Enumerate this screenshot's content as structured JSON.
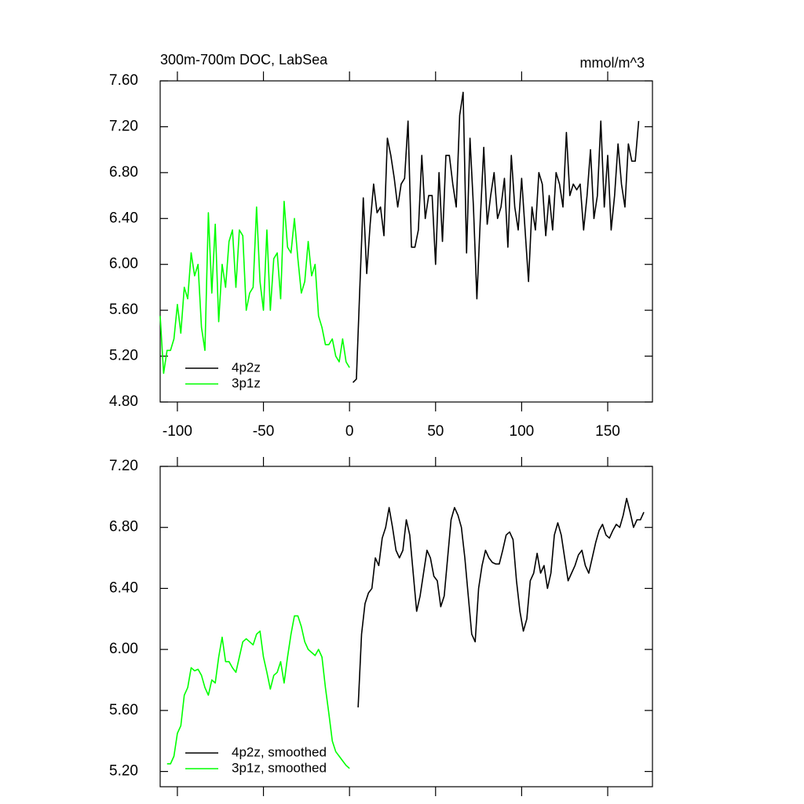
{
  "chart_data": [
    {
      "type": "line",
      "title": "300m-700m DOC, LabSea",
      "units_label": "mmol/m^3",
      "xlim": [
        -110,
        176
      ],
      "xticks": [
        -100,
        -50,
        0,
        50,
        100,
        150
      ],
      "ylim": [
        4.8,
        7.6
      ],
      "yticks": [
        {
          "value": 4.8,
          "label": "4.80"
        },
        {
          "value": 5.2,
          "label": "5.20"
        },
        {
          "value": 5.6,
          "label": "5.60"
        },
        {
          "value": 6.0,
          "label": "6.00"
        },
        {
          "value": 6.4,
          "label": "6.40"
        },
        {
          "value": 6.8,
          "label": "6.80"
        },
        {
          "value": 7.2,
          "label": "7.20"
        },
        {
          "value": 7.6,
          "label": "7.60"
        }
      ],
      "legend": "lower left",
      "series": [
        {
          "name": "4p2z",
          "color": "#000000",
          "x": [
            2,
            4,
            6,
            8,
            10,
            12,
            14,
            16,
            18,
            20,
            22,
            24,
            26,
            28,
            30,
            32,
            34,
            36,
            38,
            40,
            42,
            44,
            46,
            48,
            50,
            52,
            54,
            56,
            58,
            60,
            62,
            64,
            66,
            68,
            70,
            72,
            74,
            76,
            78,
            80,
            82,
            84,
            86,
            88,
            90,
            92,
            94,
            96,
            98,
            100,
            102,
            104,
            106,
            108,
            110,
            112,
            114,
            116,
            118,
            120,
            122,
            124,
            126,
            128,
            130,
            132,
            134,
            136,
            138,
            140,
            142,
            144,
            146,
            148,
            150,
            152,
            154,
            156,
            158,
            160,
            162,
            164,
            166,
            168
          ],
          "values": [
            4.97,
            5.0,
            5.8,
            6.58,
            5.92,
            6.35,
            6.7,
            6.45,
            6.5,
            6.25,
            7.1,
            6.95,
            6.75,
            6.5,
            6.7,
            6.75,
            7.25,
            6.15,
            6.15,
            6.3,
            6.95,
            6.4,
            6.6,
            6.6,
            6.0,
            6.8,
            6.2,
            6.95,
            6.95,
            6.7,
            6.5,
            7.3,
            7.5,
            6.1,
            7.1,
            6.5,
            5.7,
            6.4,
            7.02,
            6.35,
            6.6,
            6.8,
            6.4,
            6.5,
            6.75,
            6.15,
            6.95,
            6.5,
            6.3,
            6.75,
            6.3,
            5.85,
            6.5,
            6.3,
            6.8,
            6.7,
            6.25,
            6.6,
            6.3,
            6.8,
            6.7,
            6.5,
            7.15,
            6.6,
            6.7,
            6.65,
            6.7,
            6.3,
            6.6,
            7.0,
            6.4,
            6.6,
            7.25,
            6.5,
            6.95,
            6.3,
            6.6,
            7.05,
            6.7,
            6.5,
            7.05,
            6.9,
            6.9,
            7.25
          ]
        },
        {
          "name": "3p1z",
          "color": "#00ff00",
          "x": [
            -110,
            -108,
            -106,
            -104,
            -102,
            -100,
            -98,
            -96,
            -94,
            -92,
            -90,
            -88,
            -86,
            -84,
            -82,
            -80,
            -78,
            -76,
            -74,
            -72,
            -70,
            -68,
            -66,
            -64,
            -62,
            -60,
            -58,
            -56,
            -54,
            -52,
            -50,
            -48,
            -46,
            -44,
            -42,
            -40,
            -38,
            -36,
            -34,
            -32,
            -30,
            -28,
            -26,
            -24,
            -22,
            -20,
            -18,
            -16,
            -14,
            -12,
            -10,
            -8,
            -6,
            -4,
            -2,
            0
          ],
          "values": [
            5.55,
            5.05,
            5.25,
            5.25,
            5.35,
            5.65,
            5.4,
            5.8,
            5.7,
            6.1,
            5.9,
            6.0,
            5.45,
            5.25,
            6.45,
            5.75,
            6.35,
            5.5,
            6.0,
            5.8,
            6.2,
            6.3,
            5.8,
            6.3,
            6.25,
            5.6,
            5.75,
            5.8,
            6.5,
            5.85,
            5.6,
            6.3,
            5.6,
            6.05,
            6.1,
            5.7,
            6.55,
            6.15,
            6.1,
            6.4,
            6.05,
            5.75,
            5.85,
            6.2,
            5.9,
            6.0,
            5.55,
            5.45,
            5.3,
            5.3,
            5.35,
            5.2,
            5.15,
            5.35,
            5.15,
            5.1
          ]
        }
      ]
    },
    {
      "type": "line",
      "xlim": [
        -110,
        176
      ],
      "ylim": [
        5.1,
        7.2
      ],
      "yticks": [
        {
          "value": 5.2,
          "label": "5.20"
        },
        {
          "value": 5.6,
          "label": "5.60"
        },
        {
          "value": 6.0,
          "label": "6.00"
        },
        {
          "value": 6.4,
          "label": "6.40"
        },
        {
          "value": 6.8,
          "label": "6.80"
        },
        {
          "value": 7.2,
          "label": "7.20"
        }
      ],
      "legend": "lower left",
      "series": [
        {
          "name": "4p2z, smoothed",
          "color": "#000000",
          "x": [
            5,
            7,
            9,
            11,
            13,
            15,
            17,
            19,
            21,
            23,
            25,
            27,
            29,
            31,
            33,
            35,
            37,
            39,
            41,
            43,
            45,
            47,
            49,
            51,
            53,
            55,
            57,
            59,
            61,
            63,
            65,
            67,
            69,
            71,
            73,
            75,
            77,
            79,
            81,
            83,
            85,
            87,
            89,
            91,
            93,
            95,
            97,
            99,
            101,
            103,
            105,
            107,
            109,
            111,
            113,
            115,
            117,
            119,
            121,
            123,
            125,
            127,
            129,
            131,
            133,
            135,
            137,
            139,
            141,
            143,
            145,
            147,
            149,
            151,
            153,
            155,
            157,
            159,
            161,
            163,
            165,
            167,
            169,
            171
          ],
          "values": [
            5.62,
            6.1,
            6.3,
            6.37,
            6.4,
            6.6,
            6.55,
            6.73,
            6.8,
            6.93,
            6.8,
            6.65,
            6.6,
            6.65,
            6.85,
            6.75,
            6.5,
            6.25,
            6.35,
            6.5,
            6.65,
            6.6,
            6.48,
            6.45,
            6.28,
            6.35,
            6.6,
            6.85,
            6.93,
            6.88,
            6.8,
            6.6,
            6.35,
            6.1,
            6.05,
            6.4,
            6.55,
            6.65,
            6.6,
            6.57,
            6.56,
            6.56,
            6.65,
            6.75,
            6.77,
            6.72,
            6.45,
            6.25,
            6.12,
            6.2,
            6.45,
            6.5,
            6.63,
            6.5,
            6.55,
            6.4,
            6.5,
            6.75,
            6.83,
            6.75,
            6.6,
            6.45,
            6.5,
            6.55,
            6.62,
            6.65,
            6.55,
            6.5,
            6.6,
            6.7,
            6.78,
            6.82,
            6.75,
            6.73,
            6.78,
            6.82,
            6.8,
            6.88,
            6.99,
            6.9,
            6.8,
            6.85,
            6.85,
            6.9
          ]
        },
        {
          "name": "3p1z, smoothed",
          "color": "#00ff00",
          "x": [
            -106,
            -104,
            -102,
            -100,
            -98,
            -96,
            -94,
            -92,
            -90,
            -88,
            -86,
            -84,
            -82,
            -80,
            -78,
            -76,
            -74,
            -72,
            -70,
            -68,
            -66,
            -64,
            -62,
            -60,
            -58,
            -56,
            -54,
            -52,
            -50,
            -48,
            -46,
            -44,
            -42,
            -40,
            -38,
            -36,
            -34,
            -32,
            -30,
            -28,
            -26,
            -24,
            -22,
            -20,
            -18,
            -16,
            -14,
            -12,
            -10,
            -8,
            -6,
            -4,
            -2,
            0
          ],
          "values": [
            5.25,
            5.25,
            5.3,
            5.45,
            5.5,
            5.7,
            5.75,
            5.88,
            5.86,
            5.87,
            5.83,
            5.75,
            5.7,
            5.8,
            5.78,
            5.95,
            6.08,
            5.92,
            5.92,
            5.88,
            5.85,
            5.95,
            6.05,
            6.07,
            6.05,
            6.03,
            6.1,
            6.12,
            5.95,
            5.85,
            5.74,
            5.83,
            5.85,
            5.92,
            5.78,
            5.95,
            6.1,
            6.22,
            6.22,
            6.15,
            6.05,
            6.0,
            5.98,
            5.96,
            6.0,
            5.95,
            5.75,
            5.58,
            5.4,
            5.33,
            5.3,
            5.27,
            5.24,
            5.22
          ]
        }
      ]
    }
  ]
}
